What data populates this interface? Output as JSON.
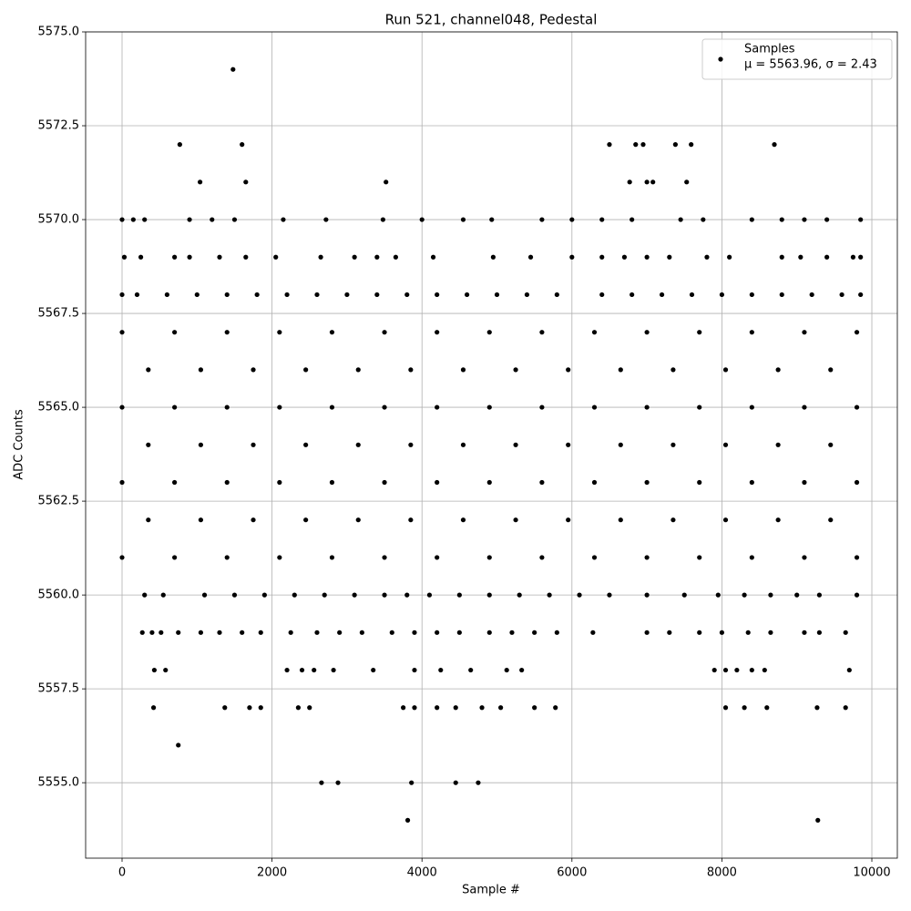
{
  "chart_data": {
    "type": "scatter",
    "title": "Run 521, channel048, Pedestal",
    "x_label": "Sample #",
    "y_label": "ADC Counts",
    "legend_stats": "μ = 5563.96, σ = 2.43",
    "legend_position": "upper right",
    "grid": true,
    "xlim": [
      -486,
      10340
    ],
    "ylim": [
      5552.99,
      5575
    ],
    "xticks": [
      0,
      2000,
      4000,
      6000,
      8000,
      10000
    ],
    "yticks": [
      {
        "value": 5555,
        "label": "5555.0"
      },
      {
        "value": 5557.5,
        "label": "5557.5"
      },
      {
        "value": 5560,
        "label": "5560.0"
      },
      {
        "value": 5562.5,
        "label": "5562.5"
      },
      {
        "value": 5565,
        "label": "5565.0"
      },
      {
        "value": 5567.5,
        "label": "5567.5"
      },
      {
        "value": 5570,
        "label": "5570.0"
      },
      {
        "value": 5572.5,
        "label": "5572.5"
      },
      {
        "value": 5575,
        "label": "5575.0"
      }
    ],
    "series": [
      {
        "name": "Samples",
        "color": "#000000",
        "x": [
          1480,
          770,
          1600,
          6500,
          6850,
          6950,
          7380,
          7590,
          8700,
          1040,
          1650,
          3520,
          6770,
          7000,
          7080,
          7530,
          0,
          150,
          300,
          900,
          1200,
          1500,
          2150,
          2720,
          3480,
          4000,
          4550,
          4930,
          5600,
          6000,
          6400,
          6800,
          7450,
          7750,
          8400,
          8800,
          9100,
          9400,
          9850,
          30,
          250,
          700,
          900,
          1300,
          1650,
          2050,
          2650,
          3100,
          3400,
          3650,
          4150,
          4950,
          5450,
          6000,
          6400,
          6700,
          7000,
          7300,
          7800,
          8100,
          8800,
          9050,
          9400,
          9750,
          9850,
          0,
          200,
          600,
          1000,
          1400,
          1800,
          2200,
          2600,
          3000,
          3400,
          3800,
          4200,
          4600,
          5000,
          5400,
          5800,
          6400,
          6800,
          7200,
          7600,
          8000,
          8400,
          8800,
          9200,
          9600,
          9850,
          0,
          700,
          1400,
          2100,
          2800,
          3500,
          4200,
          4900,
          5600,
          6300,
          7000,
          7700,
          8400,
          9100,
          9800,
          350,
          1050,
          1750,
          2450,
          3150,
          3850,
          4550,
          5250,
          5950,
          6650,
          7350,
          8050,
          8750,
          9450,
          0,
          700,
          1400,
          2100,
          2800,
          3500,
          4200,
          4900,
          5600,
          6300,
          7000,
          7700,
          8400,
          9100,
          9800,
          350,
          1050,
          1750,
          2450,
          3150,
          3850,
          4550,
          5250,
          5950,
          6650,
          7350,
          8050,
          8750,
          9450,
          0,
          700,
          1400,
          2100,
          2800,
          3500,
          4200,
          4900,
          5600,
          6300,
          7000,
          7700,
          8400,
          9100,
          9800,
          350,
          1050,
          1750,
          2450,
          3150,
          3850,
          4550,
          5250,
          5950,
          6650,
          7350,
          8050,
          8750,
          9450,
          0,
          700,
          1400,
          2100,
          2800,
          3500,
          4200,
          4900,
          5600,
          6300,
          7000,
          7700,
          8400,
          9100,
          9800,
          300,
          550,
          1100,
          1500,
          1900,
          2300,
          2700,
          3100,
          3500,
          3800,
          4100,
          4500,
          4900,
          5300,
          5700,
          6100,
          6500,
          7000,
          7500,
          7950,
          8300,
          8650,
          9000,
          9300,
          9800,
          270,
          400,
          520,
          750,
          1050,
          1300,
          1600,
          1850,
          2250,
          2600,
          2900,
          3200,
          3600,
          3900,
          4200,
          4500,
          4900,
          5200,
          5500,
          5800,
          6280,
          7000,
          7300,
          7700,
          8000,
          8350,
          8650,
          9100,
          9300,
          9650,
          430,
          580,
          2200,
          2400,
          2560,
          2820,
          3350,
          3900,
          4250,
          4650,
          5130,
          5330,
          7900,
          8050,
          8200,
          8400,
          8570,
          9700,
          420,
          1370,
          1700,
          1850,
          2350,
          2500,
          3750,
          3900,
          4200,
          4450,
          4800,
          5050,
          5500,
          5780,
          8050,
          8300,
          8600,
          9270,
          9650,
          750,
          2660,
          2880,
          3860,
          4450,
          4750,
          3810,
          9280
        ],
        "values": [
          5574,
          5572,
          5572,
          5572,
          5572,
          5572,
          5572,
          5572,
          5572,
          5571,
          5571,
          5571,
          5571,
          5571,
          5571,
          5571,
          5570,
          5570,
          5570,
          5570,
          5570,
          5570,
          5570,
          5570,
          5570,
          5570,
          5570,
          5570,
          5570,
          5570,
          5570,
          5570,
          5570,
          5570,
          5570,
          5570,
          5570,
          5570,
          5570,
          5569,
          5569,
          5569,
          5569,
          5569,
          5569,
          5569,
          5569,
          5569,
          5569,
          5569,
          5569,
          5569,
          5569,
          5569,
          5569,
          5569,
          5569,
          5569,
          5569,
          5569,
          5569,
          5569,
          5569,
          5569,
          5569,
          5568,
          5568,
          5568,
          5568,
          5568,
          5568,
          5568,
          5568,
          5568,
          5568,
          5568,
          5568,
          5568,
          5568,
          5568,
          5568,
          5568,
          5568,
          5568,
          5568,
          5568,
          5568,
          5568,
          5568,
          5568,
          5568,
          5567,
          5567,
          5567,
          5567,
          5567,
          5567,
          5567,
          5567,
          5567,
          5567,
          5567,
          5567,
          5567,
          5567,
          5567,
          5566,
          5566,
          5566,
          5566,
          5566,
          5566,
          5566,
          5566,
          5566,
          5566,
          5566,
          5566,
          5566,
          5566,
          5565,
          5565,
          5565,
          5565,
          5565,
          5565,
          5565,
          5565,
          5565,
          5565,
          5565,
          5565,
          5565,
          5565,
          5565,
          5564,
          5564,
          5564,
          5564,
          5564,
          5564,
          5564,
          5564,
          5564,
          5564,
          5564,
          5564,
          5564,
          5564,
          5563,
          5563,
          5563,
          5563,
          5563,
          5563,
          5563,
          5563,
          5563,
          5563,
          5563,
          5563,
          5563,
          5563,
          5563,
          5562,
          5562,
          5562,
          5562,
          5562,
          5562,
          5562,
          5562,
          5562,
          5562,
          5562,
          5562,
          5562,
          5562,
          5561,
          5561,
          5561,
          5561,
          5561,
          5561,
          5561,
          5561,
          5561,
          5561,
          5561,
          5561,
          5561,
          5561,
          5561,
          5560,
          5560,
          5560,
          5560,
          5560,
          5560,
          5560,
          5560,
          5560,
          5560,
          5560,
          5560,
          5560,
          5560,
          5560,
          5560,
          5560,
          5560,
          5560,
          5560,
          5560,
          5560,
          5560,
          5560,
          5560,
          5559,
          5559,
          5559,
          5559,
          5559,
          5559,
          5559,
          5559,
          5559,
          5559,
          5559,
          5559,
          5559,
          5559,
          5559,
          5559,
          5559,
          5559,
          5559,
          5559,
          5559,
          5559,
          5559,
          5559,
          5559,
          5559,
          5559,
          5559,
          5559,
          5559,
          5558,
          5558,
          5558,
          5558,
          5558,
          5558,
          5558,
          5558,
          5558,
          5558,
          5558,
          5558,
          5558,
          5558,
          5558,
          5558,
          5558,
          5558,
          5557,
          5557,
          5557,
          5557,
          5557,
          5557,
          5557,
          5557,
          5557,
          5557,
          5557,
          5557,
          5557,
          5557,
          5557,
          5557,
          5557,
          5557,
          5557,
          5556,
          5555,
          5555,
          5555,
          5555,
          5555,
          5554,
          5554
        ]
      }
    ]
  }
}
